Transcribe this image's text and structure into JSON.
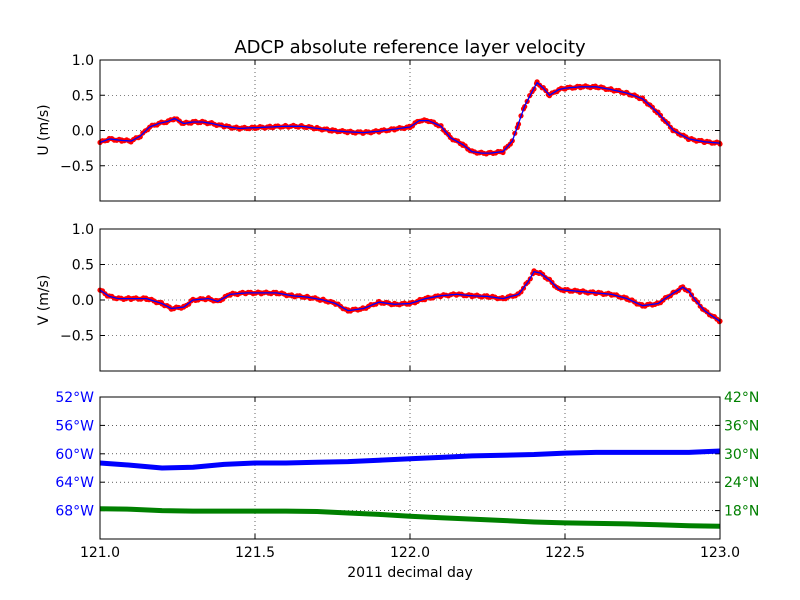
{
  "chart_data": [
    {
      "type": "scatter",
      "title": "ADCP absolute reference layer velocity",
      "ylabel": "U (m/s)",
      "xlim": [
        121.0,
        123.0
      ],
      "ylim": [
        -1.0,
        1.0
      ],
      "yticks": [
        "1.0",
        "0.5",
        "0.0",
        "−0.5"
      ],
      "ytick_values": [
        1.0,
        0.5,
        0.0,
        -0.5
      ],
      "xticks_values": [
        121.0,
        121.5,
        122.0,
        122.5,
        123.0
      ],
      "grid": true,
      "series": [
        {
          "color": "#ff0000",
          "line_color": "#0000ff",
          "x": [
            121.0,
            121.03,
            121.07,
            121.1,
            121.13,
            121.16,
            121.19,
            121.22,
            121.24,
            121.27,
            121.3,
            121.33,
            121.36,
            121.4,
            121.45,
            121.5,
            121.55,
            121.6,
            121.65,
            121.7,
            121.75,
            121.8,
            121.85,
            121.9,
            121.95,
            122.0,
            122.03,
            122.06,
            122.1,
            122.13,
            122.17,
            122.2,
            122.23,
            122.26,
            122.3,
            122.33,
            122.35,
            122.37,
            122.4,
            122.41,
            122.43,
            122.45,
            122.48,
            122.5,
            122.55,
            122.6,
            122.65,
            122.7,
            122.75,
            122.8,
            122.85,
            122.9,
            122.95,
            123.0
          ],
          "y": [
            -0.17,
            -0.12,
            -0.14,
            -0.15,
            -0.08,
            0.05,
            0.1,
            0.13,
            0.17,
            0.1,
            0.12,
            0.12,
            0.1,
            0.06,
            0.03,
            0.04,
            0.05,
            0.06,
            0.06,
            0.03,
            0.0,
            -0.02,
            -0.03,
            -0.01,
            0.02,
            0.05,
            0.14,
            0.14,
            0.06,
            -0.1,
            -0.2,
            -0.3,
            -0.32,
            -0.32,
            -0.3,
            -0.15,
            0.1,
            0.35,
            0.6,
            0.68,
            0.6,
            0.5,
            0.58,
            0.6,
            0.62,
            0.62,
            0.58,
            0.53,
            0.45,
            0.25,
            0.0,
            -0.12,
            -0.16,
            -0.18
          ]
        }
      ]
    },
    {
      "type": "scatter",
      "ylabel": "V (m/s)",
      "xlim": [
        121.0,
        123.0
      ],
      "ylim": [
        -1.0,
        1.0
      ],
      "yticks": [
        "1.0",
        "0.5",
        "0.0",
        "−0.5"
      ],
      "ytick_values": [
        1.0,
        0.5,
        0.0,
        -0.5
      ],
      "xticks_values": [
        121.0,
        121.5,
        122.0,
        122.5,
        123.0
      ],
      "grid": true,
      "series": [
        {
          "color": "#ff0000",
          "line_color": "#0000ff",
          "x": [
            121.0,
            121.03,
            121.06,
            121.1,
            121.15,
            121.2,
            121.23,
            121.27,
            121.3,
            121.35,
            121.38,
            121.42,
            121.47,
            121.52,
            121.57,
            121.62,
            121.67,
            121.72,
            121.76,
            121.8,
            121.85,
            121.9,
            121.95,
            122.0,
            122.05,
            122.1,
            122.15,
            122.2,
            122.25,
            122.3,
            122.35,
            122.38,
            122.4,
            122.42,
            122.45,
            122.48,
            122.5,
            122.55,
            122.6,
            122.65,
            122.7,
            122.75,
            122.8,
            122.85,
            122.88,
            122.9,
            122.92,
            122.95,
            123.0
          ],
          "y": [
            0.14,
            0.05,
            0.02,
            0.02,
            0.02,
            -0.05,
            -0.12,
            -0.1,
            0.0,
            0.02,
            -0.02,
            0.08,
            0.1,
            0.1,
            0.1,
            0.06,
            0.04,
            0.0,
            -0.05,
            -0.15,
            -0.12,
            -0.03,
            -0.06,
            -0.05,
            0.02,
            0.06,
            0.08,
            0.06,
            0.05,
            0.02,
            0.08,
            0.25,
            0.4,
            0.38,
            0.28,
            0.15,
            0.14,
            0.12,
            0.1,
            0.08,
            0.02,
            -0.08,
            -0.05,
            0.1,
            0.18,
            0.12,
            0.0,
            -0.15,
            -0.3
          ]
        }
      ]
    },
    {
      "type": "line",
      "xlabel": "2011 decimal day",
      "xlim": [
        121.0,
        123.0
      ],
      "xticks": [
        "121.0",
        "121.5",
        "122.0",
        "122.5",
        "123.0"
      ],
      "xticks_values": [
        121.0,
        121.5,
        122.0,
        122.5,
        123.0
      ],
      "grid": true,
      "left_axis": {
        "color": "#0000ff",
        "ylim": [
          -72,
          -52
        ],
        "yticks": [
          "52°W",
          "56°W",
          "60°W",
          "64°W",
          "68°W"
        ],
        "ytick_values": [
          -52,
          -56,
          -60,
          -64,
          -68
        ]
      },
      "right_axis": {
        "color": "#008000",
        "ylim": [
          12,
          42
        ],
        "yticks": [
          "42°N",
          "36°N",
          "30°N",
          "24°N",
          "18°N"
        ],
        "ytick_values": [
          42,
          36,
          30,
          24,
          18
        ]
      },
      "series": [
        {
          "axis": "left",
          "color": "#0000ff",
          "x": [
            121.0,
            121.1,
            121.2,
            121.3,
            121.4,
            121.5,
            121.6,
            121.7,
            121.8,
            121.9,
            122.0,
            122.1,
            122.2,
            122.3,
            122.4,
            122.5,
            122.6,
            122.7,
            122.8,
            122.9,
            123.0
          ],
          "y": [
            -61.3,
            -61.6,
            -62.0,
            -61.9,
            -61.5,
            -61.3,
            -61.3,
            -61.2,
            -61.1,
            -60.9,
            -60.7,
            -60.5,
            -60.3,
            -60.2,
            -60.1,
            -59.9,
            -59.8,
            -59.8,
            -59.8,
            -59.8,
            -59.6
          ]
        },
        {
          "axis": "right",
          "color": "#008000",
          "x": [
            121.0,
            121.1,
            121.2,
            121.3,
            121.4,
            121.5,
            121.6,
            121.7,
            121.8,
            121.9,
            122.0,
            122.1,
            122.2,
            122.3,
            122.4,
            122.5,
            122.6,
            122.7,
            122.8,
            122.9,
            123.0
          ],
          "y": [
            18.4,
            18.3,
            18.0,
            17.9,
            17.9,
            17.9,
            17.9,
            17.8,
            17.5,
            17.2,
            16.8,
            16.5,
            16.2,
            15.9,
            15.6,
            15.4,
            15.3,
            15.2,
            15.0,
            14.8,
            14.7
          ]
        }
      ]
    }
  ]
}
